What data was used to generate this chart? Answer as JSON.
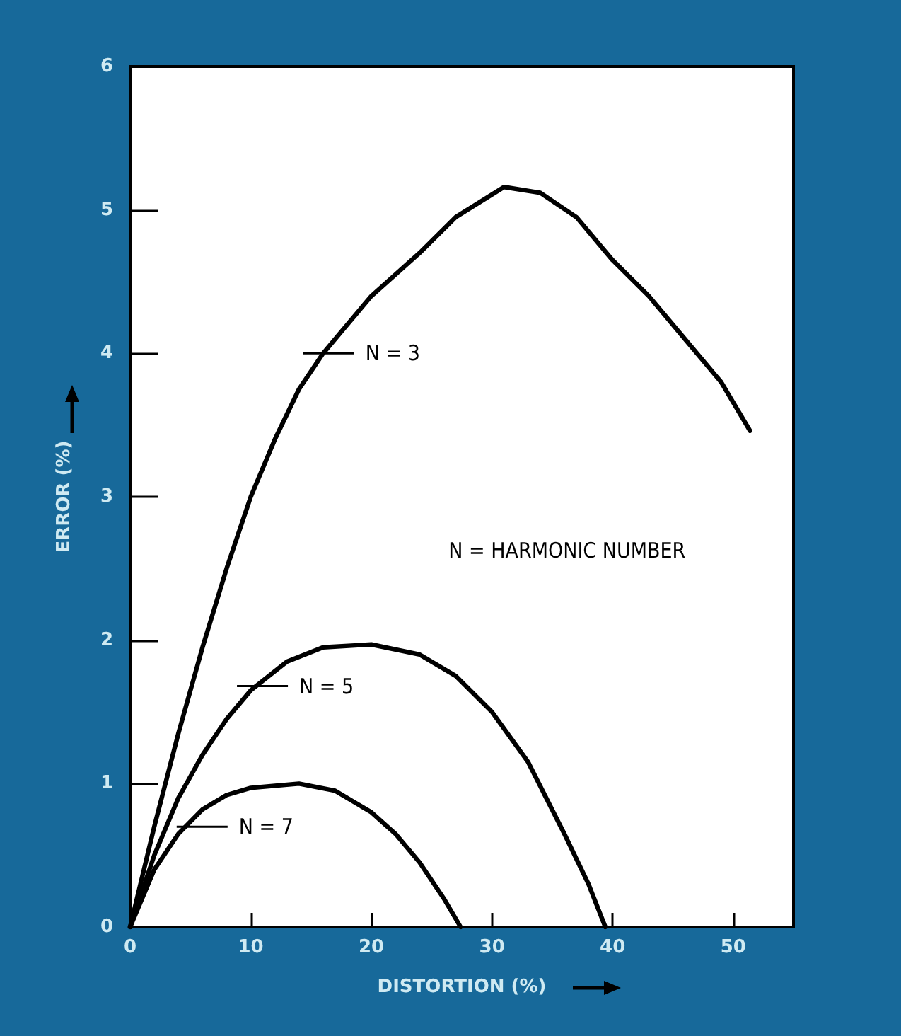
{
  "chart_data": {
    "type": "line",
    "xlabel": "DISTORTION (%)",
    "ylabel": "ERROR (%)",
    "xlim": [
      0,
      55
    ],
    "xticks": [
      0,
      10,
      20,
      30,
      40,
      50
    ],
    "ylim": [
      0,
      6
    ],
    "yticks": [
      0,
      1,
      2,
      3,
      4,
      5,
      6
    ],
    "marker": "none",
    "line_style": "solid",
    "series": [
      {
        "color": "#000000",
        "x": [
          0,
          2,
          4,
          6,
          8,
          10,
          12,
          14,
          16,
          18,
          20,
          24,
          27,
          31,
          34,
          37,
          40,
          43,
          46,
          49,
          51.4
        ],
        "values": [
          0,
          0.7,
          1.35,
          1.95,
          2.5,
          3.0,
          3.4,
          3.75,
          4.0,
          4.2,
          4.4,
          4.7,
          4.95,
          5.16,
          5.12,
          4.95,
          4.65,
          4.4,
          4.1,
          3.8,
          3.46
        ]
      },
      {
        "color": "#000000",
        "x": [
          0,
          2,
          4,
          6,
          8,
          10,
          13,
          16,
          20,
          24,
          27,
          30,
          33,
          36,
          38,
          39.4
        ],
        "values": [
          0,
          0.5,
          0.9,
          1.2,
          1.45,
          1.65,
          1.85,
          1.95,
          1.97,
          1.9,
          1.75,
          1.5,
          1.15,
          0.65,
          0.3,
          0
        ]
      },
      {
        "color": "#000000",
        "x": [
          0,
          2,
          4,
          6,
          8,
          10,
          14,
          17,
          20,
          22,
          24,
          26,
          27.4
        ],
        "values": [
          0,
          0.4,
          0.65,
          0.82,
          0.92,
          0.97,
          1.0,
          0.95,
          0.8,
          0.65,
          0.45,
          0.2,
          0
        ]
      }
    ],
    "annotations": [
      {
        "text": "N = 3",
        "x": 16,
        "y": 4
      },
      {
        "text": "N = 5",
        "x": 10.5,
        "y": 1.68
      },
      {
        "text": "N = 7",
        "x": 5.5,
        "y": 0.7
      },
      "N = HARMONIC NUMBER"
    ]
  }
}
